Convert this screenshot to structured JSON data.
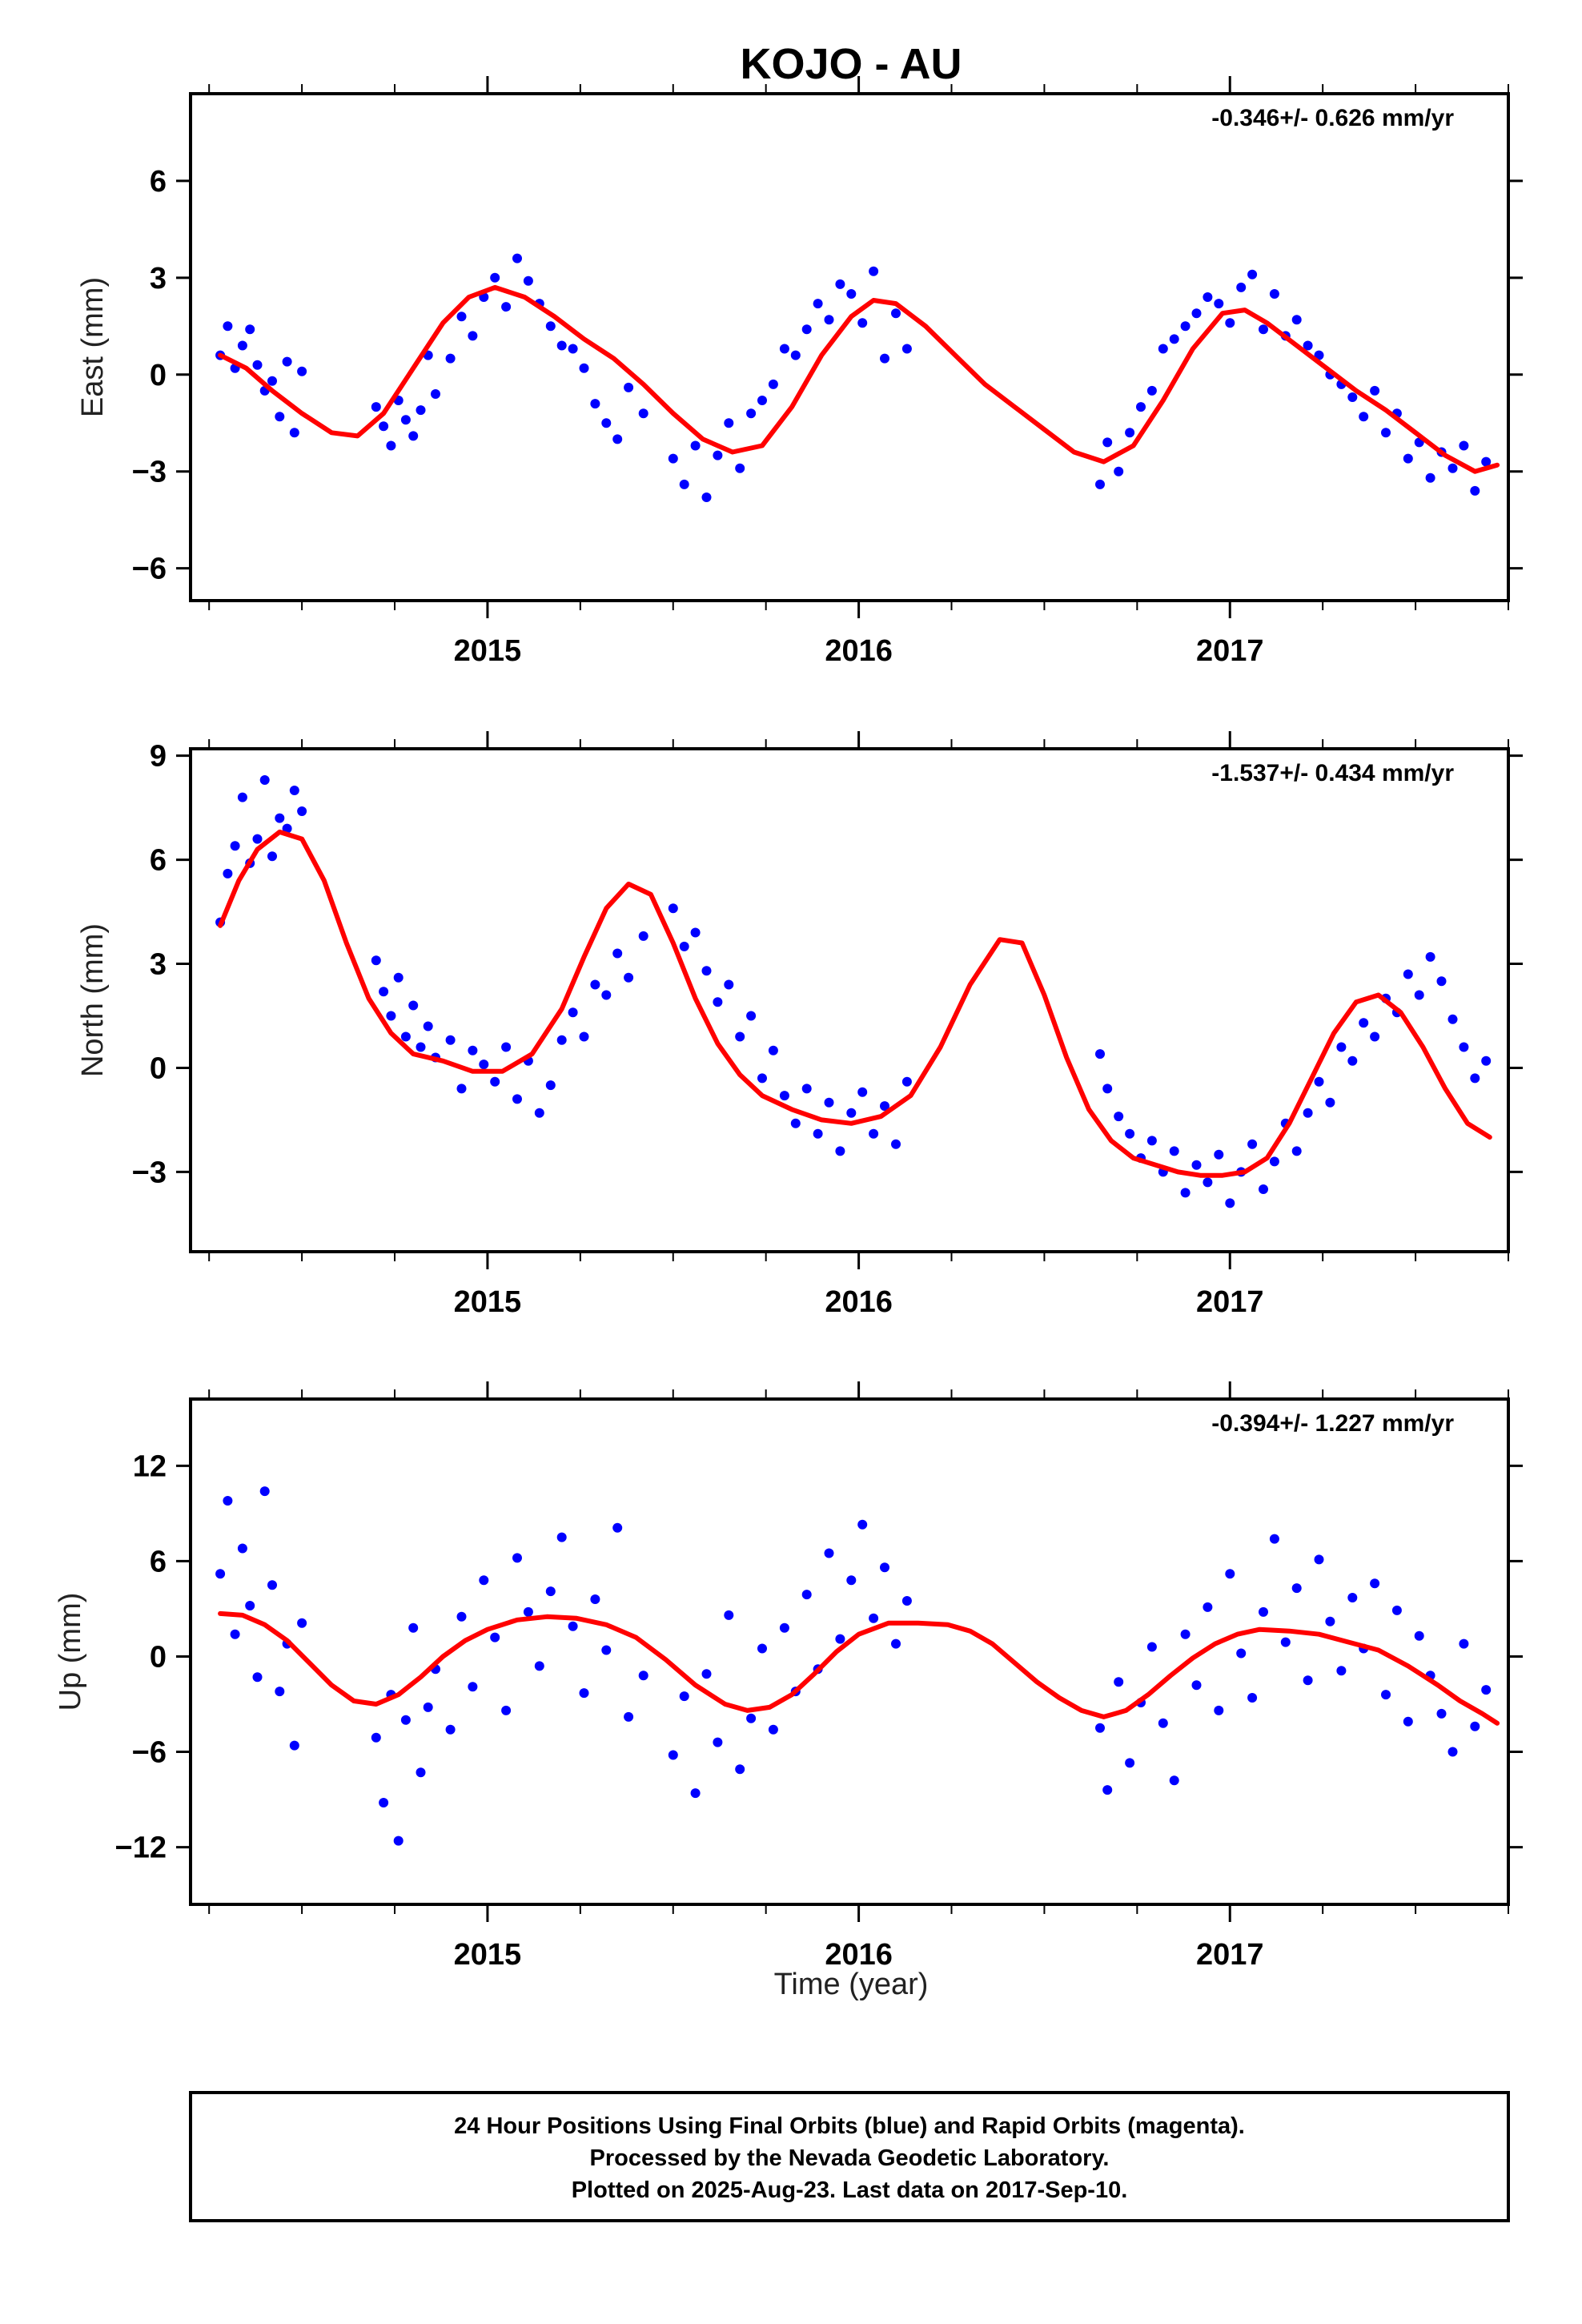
{
  "title": "KOJO - AU",
  "xlabel": "Time (year)",
  "footer": {
    "lines": [
      "24 Hour Positions Using Final Orbits (blue) and Rapid Orbits (magenta).",
      "Processed by the Nevada Geodetic Laboratory.",
      "Plotted on 2025-Aug-23. Last data on 2017-Sep-10."
    ]
  },
  "colors": {
    "data_points": "#0000ff",
    "model_fit": "#ff0000"
  },
  "chart_data": [
    {
      "type": "scatter",
      "panel": "east",
      "ylabel": "East (mm)",
      "rate_label": "-0.346+/- 0.626 mm/yr",
      "xlim": [
        2014.2,
        2017.75
      ],
      "ylim": [
        -7,
        8.7
      ],
      "x_ticks": [
        2015,
        2016,
        2017
      ],
      "y_ticks": [
        -6,
        -3,
        0,
        3,
        6
      ],
      "grid": false,
      "series": [
        {
          "role": "daily-positions",
          "x": [
            2014.28,
            2014.3,
            2014.32,
            2014.34,
            2014.36,
            2014.38,
            2014.4,
            2014.42,
            2014.44,
            2014.46,
            2014.48,
            2014.5,
            2014.7,
            2014.72,
            2014.74,
            2014.76,
            2014.78,
            2014.8,
            2014.82,
            2014.84,
            2014.86,
            2014.9,
            2014.93,
            2014.96,
            2014.99,
            2015.02,
            2015.05,
            2015.08,
            2015.11,
            2015.14,
            2015.17,
            2015.2,
            2015.23,
            2015.26,
            2015.29,
            2015.32,
            2015.35,
            2015.38,
            2015.42,
            2015.5,
            2015.53,
            2015.56,
            2015.59,
            2015.62,
            2015.65,
            2015.68,
            2015.71,
            2015.74,
            2015.77,
            2015.8,
            2015.83,
            2015.86,
            2015.89,
            2015.92,
            2015.95,
            2015.98,
            2016.01,
            2016.04,
            2016.07,
            2016.1,
            2016.13,
            2016.65,
            2016.67,
            2016.7,
            2016.73,
            2016.76,
            2016.79,
            2016.82,
            2016.85,
            2016.88,
            2016.91,
            2016.94,
            2016.97,
            2017.0,
            2017.03,
            2017.06,
            2017.09,
            2017.12,
            2017.15,
            2017.18,
            2017.21,
            2017.24,
            2017.27,
            2017.3,
            2017.33,
            2017.36,
            2017.39,
            2017.42,
            2017.45,
            2017.48,
            2017.51,
            2017.54,
            2017.57,
            2017.6,
            2017.63,
            2017.66,
            2017.69
          ],
          "y": [
            0.6,
            1.5,
            0.2,
            0.9,
            1.4,
            0.3,
            -0.5,
            -0.2,
            -1.3,
            0.4,
            -1.8,
            0.1,
            -1.0,
            -1.6,
            -2.2,
            -0.8,
            -1.4,
            -1.9,
            -1.1,
            0.6,
            -0.6,
            0.5,
            1.8,
            1.2,
            2.4,
            3.0,
            2.1,
            3.6,
            2.9,
            2.2,
            1.5,
            0.9,
            0.8,
            0.2,
            -0.9,
            -1.5,
            -2.0,
            -0.4,
            -1.2,
            -2.6,
            -3.4,
            -2.2,
            -3.8,
            -2.5,
            -1.5,
            -2.9,
            -1.2,
            -0.8,
            -0.3,
            0.8,
            0.6,
            1.4,
            2.2,
            1.7,
            2.8,
            2.5,
            1.6,
            3.2,
            0.5,
            1.9,
            0.8,
            -3.4,
            -2.1,
            -3.0,
            -1.8,
            -1.0,
            -0.5,
            0.8,
            1.1,
            1.5,
            1.9,
            2.4,
            2.2,
            1.6,
            2.7,
            3.1,
            1.4,
            2.5,
            1.2,
            1.7,
            0.9,
            0.6,
            0.0,
            -0.3,
            -0.7,
            -1.3,
            -0.5,
            -1.8,
            -1.2,
            -2.6,
            -2.1,
            -3.2,
            -2.4,
            -2.9,
            -2.2,
            -3.6,
            -2.7
          ]
        },
        {
          "role": "model-fit",
          "x": [
            2014.28,
            2014.35,
            2014.42,
            2014.5,
            2014.58,
            2014.65,
            2014.72,
            2014.8,
            2014.88,
            2014.95,
            2015.02,
            2015.1,
            2015.18,
            2015.26,
            2015.34,
            2015.42,
            2015.5,
            2015.58,
            2015.66,
            2015.74,
            2015.82,
            2015.9,
            2015.98,
            2016.04,
            2016.1,
            2016.18,
            2016.26,
            2016.34,
            2016.42,
            2016.5,
            2016.58,
            2016.66,
            2016.74,
            2016.82,
            2016.9,
            2016.98,
            2017.04,
            2017.1,
            2017.18,
            2017.26,
            2017.34,
            2017.42,
            2017.5,
            2017.58,
            2017.66,
            2017.72
          ],
          "y": [
            0.6,
            0.2,
            -0.5,
            -1.2,
            -1.8,
            -1.9,
            -1.2,
            0.2,
            1.6,
            2.4,
            2.7,
            2.4,
            1.8,
            1.1,
            0.5,
            -0.3,
            -1.2,
            -2.0,
            -2.4,
            -2.2,
            -1.0,
            0.6,
            1.8,
            2.3,
            2.2,
            1.5,
            0.6,
            -0.3,
            -1.0,
            -1.7,
            -2.4,
            -2.7,
            -2.2,
            -0.8,
            0.8,
            1.9,
            2.0,
            1.6,
            0.9,
            0.2,
            -0.5,
            -1.1,
            -1.8,
            -2.5,
            -3.0,
            -2.8
          ]
        }
      ]
    },
    {
      "type": "scatter",
      "panel": "north",
      "ylabel": "North (mm)",
      "rate_label": "-1.537+/- 0.434 mm/yr",
      "xlim": [
        2014.2,
        2017.75
      ],
      "ylim": [
        -5.3,
        9.2
      ],
      "x_ticks": [
        2015,
        2016,
        2017
      ],
      "y_ticks": [
        -3,
        0,
        3,
        6,
        9
      ],
      "grid": false,
      "series": [
        {
          "role": "daily-positions",
          "x": [
            2014.28,
            2014.3,
            2014.32,
            2014.34,
            2014.36,
            2014.38,
            2014.4,
            2014.42,
            2014.44,
            2014.46,
            2014.48,
            2014.5,
            2014.7,
            2014.72,
            2014.74,
            2014.76,
            2014.78,
            2014.8,
            2014.82,
            2014.84,
            2014.86,
            2014.9,
            2014.93,
            2014.96,
            2014.99,
            2015.02,
            2015.05,
            2015.08,
            2015.11,
            2015.14,
            2015.17,
            2015.2,
            2015.23,
            2015.26,
            2015.29,
            2015.32,
            2015.35,
            2015.38,
            2015.42,
            2015.5,
            2015.53,
            2015.56,
            2015.59,
            2015.62,
            2015.65,
            2015.68,
            2015.71,
            2015.74,
            2015.77,
            2015.8,
            2015.83,
            2015.86,
            2015.89,
            2015.92,
            2015.95,
            2015.98,
            2016.01,
            2016.04,
            2016.07,
            2016.1,
            2016.13,
            2016.65,
            2016.67,
            2016.7,
            2016.73,
            2016.76,
            2016.79,
            2016.82,
            2016.85,
            2016.88,
            2016.91,
            2016.94,
            2016.97,
            2017.0,
            2017.03,
            2017.06,
            2017.09,
            2017.12,
            2017.15,
            2017.18,
            2017.21,
            2017.24,
            2017.27,
            2017.3,
            2017.33,
            2017.36,
            2017.39,
            2017.42,
            2017.45,
            2017.48,
            2017.51,
            2017.54,
            2017.57,
            2017.6,
            2017.63,
            2017.66,
            2017.69
          ],
          "y": [
            4.2,
            5.6,
            6.4,
            7.8,
            5.9,
            6.6,
            8.3,
            6.1,
            7.2,
            6.9,
            8.0,
            7.4,
            3.1,
            2.2,
            1.5,
            2.6,
            0.9,
            1.8,
            0.6,
            1.2,
            0.3,
            0.8,
            -0.6,
            0.5,
            0.1,
            -0.4,
            0.6,
            -0.9,
            0.2,
            -1.3,
            -0.5,
            0.8,
            1.6,
            0.9,
            2.4,
            2.1,
            3.3,
            2.6,
            3.8,
            4.6,
            3.5,
            3.9,
            2.8,
            1.9,
            2.4,
            0.9,
            1.5,
            -0.3,
            0.5,
            -0.8,
            -1.6,
            -0.6,
            -1.9,
            -1.0,
            -2.4,
            -1.3,
            -0.7,
            -1.9,
            -1.1,
            -2.2,
            -0.4,
            0.4,
            -0.6,
            -1.4,
            -1.9,
            -2.6,
            -2.1,
            -3.0,
            -2.4,
            -3.6,
            -2.8,
            -3.3,
            -2.5,
            -3.9,
            -3.0,
            -2.2,
            -3.5,
            -2.7,
            -1.6,
            -2.4,
            -1.3,
            -0.4,
            -1.0,
            0.6,
            0.2,
            1.3,
            0.9,
            2.0,
            1.6,
            2.7,
            2.1,
            3.2,
            2.5,
            1.4,
            0.6,
            -0.3,
            0.2
          ]
        },
        {
          "role": "model-fit",
          "x": [
            2014.28,
            2014.33,
            2014.38,
            2014.44,
            2014.5,
            2014.56,
            2014.62,
            2014.68,
            2014.74,
            2014.8,
            2014.88,
            2014.96,
            2015.04,
            2015.12,
            2015.2,
            2015.26,
            2015.32,
            2015.38,
            2015.44,
            2015.5,
            2015.56,
            2015.62,
            2015.68,
            2015.74,
            2015.82,
            2015.9,
            2015.98,
            2016.06,
            2016.14,
            2016.22,
            2016.3,
            2016.38,
            2016.44,
            2016.5,
            2016.56,
            2016.62,
            2016.68,
            2016.74,
            2016.8,
            2016.86,
            2016.92,
            2016.98,
            2017.04,
            2017.1,
            2017.16,
            2017.22,
            2017.28,
            2017.34,
            2017.4,
            2017.46,
            2017.52,
            2017.58,
            2017.64,
            2017.7
          ],
          "y": [
            4.1,
            5.4,
            6.3,
            6.8,
            6.6,
            5.4,
            3.6,
            2.0,
            1.0,
            0.4,
            0.2,
            -0.1,
            -0.1,
            0.4,
            1.7,
            3.2,
            4.6,
            5.3,
            5.0,
            3.6,
            2.0,
            0.7,
            -0.2,
            -0.8,
            -1.2,
            -1.5,
            -1.6,
            -1.4,
            -0.8,
            0.6,
            2.4,
            3.7,
            3.6,
            2.1,
            0.3,
            -1.2,
            -2.1,
            -2.6,
            -2.8,
            -3.0,
            -3.1,
            -3.1,
            -3.0,
            -2.6,
            -1.6,
            -0.3,
            1.0,
            1.9,
            2.1,
            1.6,
            0.6,
            -0.6,
            -1.6,
            -2.0
          ]
        }
      ]
    },
    {
      "type": "scatter",
      "panel": "up",
      "ylabel": "Up (mm)",
      "rate_label": "-0.394+/- 1.227 mm/yr",
      "xlim": [
        2014.2,
        2017.75
      ],
      "ylim": [
        -15.6,
        16.2
      ],
      "x_ticks": [
        2015,
        2016,
        2017
      ],
      "y_ticks": [
        -12,
        -6,
        0,
        6,
        12
      ],
      "grid": false,
      "series": [
        {
          "role": "daily-positions",
          "x": [
            2014.28,
            2014.3,
            2014.32,
            2014.34,
            2014.36,
            2014.38,
            2014.4,
            2014.42,
            2014.44,
            2014.46,
            2014.48,
            2014.5,
            2014.7,
            2014.72,
            2014.74,
            2014.76,
            2014.78,
            2014.8,
            2014.82,
            2014.84,
            2014.86,
            2014.9,
            2014.93,
            2014.96,
            2014.99,
            2015.02,
            2015.05,
            2015.08,
            2015.11,
            2015.14,
            2015.17,
            2015.2,
            2015.23,
            2015.26,
            2015.29,
            2015.32,
            2015.35,
            2015.38,
            2015.42,
            2015.5,
            2015.53,
            2015.56,
            2015.59,
            2015.62,
            2015.65,
            2015.68,
            2015.71,
            2015.74,
            2015.77,
            2015.8,
            2015.83,
            2015.86,
            2015.89,
            2015.92,
            2015.95,
            2015.98,
            2016.01,
            2016.04,
            2016.07,
            2016.1,
            2016.13,
            2016.65,
            2016.67,
            2016.7,
            2016.73,
            2016.76,
            2016.79,
            2016.82,
            2016.85,
            2016.88,
            2016.91,
            2016.94,
            2016.97,
            2017.0,
            2017.03,
            2017.06,
            2017.09,
            2017.12,
            2017.15,
            2017.18,
            2017.21,
            2017.24,
            2017.27,
            2017.3,
            2017.33,
            2017.36,
            2017.39,
            2017.42,
            2017.45,
            2017.48,
            2017.51,
            2017.54,
            2017.57,
            2017.6,
            2017.63,
            2017.66,
            2017.69
          ],
          "y": [
            5.2,
            9.8,
            1.4,
            6.8,
            3.2,
            -1.3,
            10.4,
            4.5,
            -2.2,
            0.8,
            -5.6,
            2.1,
            -5.1,
            -9.2,
            -2.4,
            -11.6,
            -4.0,
            1.8,
            -7.3,
            -3.2,
            -0.8,
            -4.6,
            2.5,
            -1.9,
            4.8,
            1.2,
            -3.4,
            6.2,
            2.8,
            -0.6,
            4.1,
            7.5,
            1.9,
            -2.3,
            3.6,
            0.4,
            8.1,
            -3.8,
            -1.2,
            -6.2,
            -2.5,
            -8.6,
            -1.1,
            -5.4,
            2.6,
            -7.1,
            -3.9,
            0.5,
            -4.6,
            1.8,
            -2.2,
            3.9,
            -0.8,
            6.5,
            1.1,
            4.8,
            8.3,
            2.4,
            5.6,
            0.8,
            3.5,
            -4.5,
            -8.4,
            -1.6,
            -6.7,
            -2.9,
            0.6,
            -4.2,
            -7.8,
            1.4,
            -1.8,
            3.1,
            -3.4,
            5.2,
            0.2,
            -2.6,
            2.8,
            7.4,
            0.9,
            4.3,
            -1.5,
            6.1,
            2.2,
            -0.9,
            3.7,
            0.5,
            4.6,
            -2.4,
            2.9,
            -4.1,
            1.3,
            -1.2,
            -3.6,
            -6.0,
            0.8,
            -4.4,
            -2.1
          ]
        },
        {
          "role": "model-fit",
          "x": [
            2014.28,
            2014.34,
            2014.4,
            2014.46,
            2014.52,
            2014.58,
            2014.64,
            2014.7,
            2014.76,
            2014.82,
            2014.88,
            2014.94,
            2015.0,
            2015.08,
            2015.16,
            2015.24,
            2015.32,
            2015.4,
            2015.48,
            2015.56,
            2015.64,
            2015.7,
            2015.76,
            2015.82,
            2015.88,
            2015.94,
            2016.0,
            2016.08,
            2016.16,
            2016.24,
            2016.3,
            2016.36,
            2016.42,
            2016.48,
            2016.54,
            2016.6,
            2016.66,
            2016.72,
            2016.78,
            2016.84,
            2016.9,
            2016.96,
            2017.02,
            2017.08,
            2017.16,
            2017.24,
            2017.32,
            2017.4,
            2017.48,
            2017.56,
            2017.62,
            2017.68,
            2017.72
          ],
          "y": [
            2.7,
            2.6,
            2.0,
            1.0,
            -0.4,
            -1.8,
            -2.8,
            -3.0,
            -2.4,
            -1.3,
            0.0,
            1.0,
            1.7,
            2.3,
            2.5,
            2.4,
            2.0,
            1.2,
            -0.2,
            -1.8,
            -3.0,
            -3.4,
            -3.2,
            -2.4,
            -1.1,
            0.3,
            1.4,
            2.1,
            2.1,
            2.0,
            1.6,
            0.8,
            -0.4,
            -1.6,
            -2.6,
            -3.4,
            -3.8,
            -3.4,
            -2.4,
            -1.2,
            -0.1,
            0.8,
            1.4,
            1.7,
            1.6,
            1.4,
            0.9,
            0.4,
            -0.6,
            -1.8,
            -2.8,
            -3.6,
            -4.2
          ]
        }
      ]
    }
  ]
}
